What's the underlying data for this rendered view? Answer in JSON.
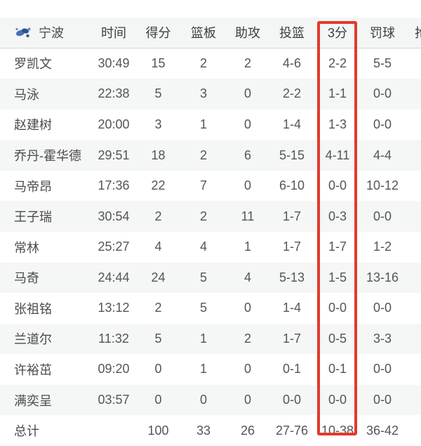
{
  "team": {
    "name": "宁波"
  },
  "header": {
    "columns": [
      "时间",
      "得分",
      "篮板",
      "助攻",
      "投篮",
      "3分",
      "罚球",
      "抢断"
    ]
  },
  "highlight": {
    "column": "3分",
    "box_color": "#e23a2b"
  },
  "logo_colors": {
    "primary": "#4a72b2",
    "dark": "#2c4f8f",
    "light": "#6b8cc4"
  },
  "table": {
    "players": [
      {
        "name": "罗凯文",
        "time": "30:49",
        "pts": "15",
        "reb": "2",
        "ast": "2",
        "fg": "4-6",
        "tp": "2-2",
        "ft": "5-5"
      },
      {
        "name": "马泳",
        "time": "22:38",
        "pts": "5",
        "reb": "3",
        "ast": "0",
        "fg": "2-2",
        "tp": "1-1",
        "ft": "0-0"
      },
      {
        "name": "赵建树",
        "time": "20:00",
        "pts": "3",
        "reb": "1",
        "ast": "0",
        "fg": "1-4",
        "tp": "1-3",
        "ft": "0-0"
      },
      {
        "name": "乔丹-霍华德",
        "time": "29:51",
        "pts": "18",
        "reb": "2",
        "ast": "6",
        "fg": "5-15",
        "tp": "4-11",
        "ft": "4-4"
      },
      {
        "name": "马帝昂",
        "time": "17:36",
        "pts": "22",
        "reb": "7",
        "ast": "0",
        "fg": "6-10",
        "tp": "0-0",
        "ft": "10-12"
      },
      {
        "name": "王子瑞",
        "time": "30:54",
        "pts": "2",
        "reb": "2",
        "ast": "11",
        "fg": "1-7",
        "tp": "0-3",
        "ft": "0-0"
      },
      {
        "name": "常林",
        "time": "25:27",
        "pts": "4",
        "reb": "4",
        "ast": "1",
        "fg": "1-7",
        "tp": "1-7",
        "ft": "1-2"
      },
      {
        "name": "马奇",
        "time": "24:44",
        "pts": "24",
        "reb": "5",
        "ast": "4",
        "fg": "5-13",
        "tp": "1-5",
        "ft": "13-16"
      },
      {
        "name": "张祖铭",
        "time": "13:12",
        "pts": "2",
        "reb": "5",
        "ast": "0",
        "fg": "1-4",
        "tp": "0-0",
        "ft": "0-0"
      },
      {
        "name": "兰道尔",
        "time": "11:32",
        "pts": "5",
        "reb": "1",
        "ast": "2",
        "fg": "1-7",
        "tp": "0-5",
        "ft": "3-3"
      },
      {
        "name": "许裕茁",
        "time": "09:20",
        "pts": "0",
        "reb": "1",
        "ast": "0",
        "fg": "0-1",
        "tp": "0-1",
        "ft": "0-0"
      },
      {
        "name": "满奕呈",
        "time": "03:57",
        "pts": "0",
        "reb": "0",
        "ast": "0",
        "fg": "0-0",
        "tp": "0-0",
        "ft": "0-0"
      }
    ],
    "totals": {
      "name": "总计",
      "time": "",
      "pts": "100",
      "reb": "33",
      "ast": "26",
      "fg": "27-76",
      "tp": "10-38",
      "ft": "36-42"
    }
  }
}
